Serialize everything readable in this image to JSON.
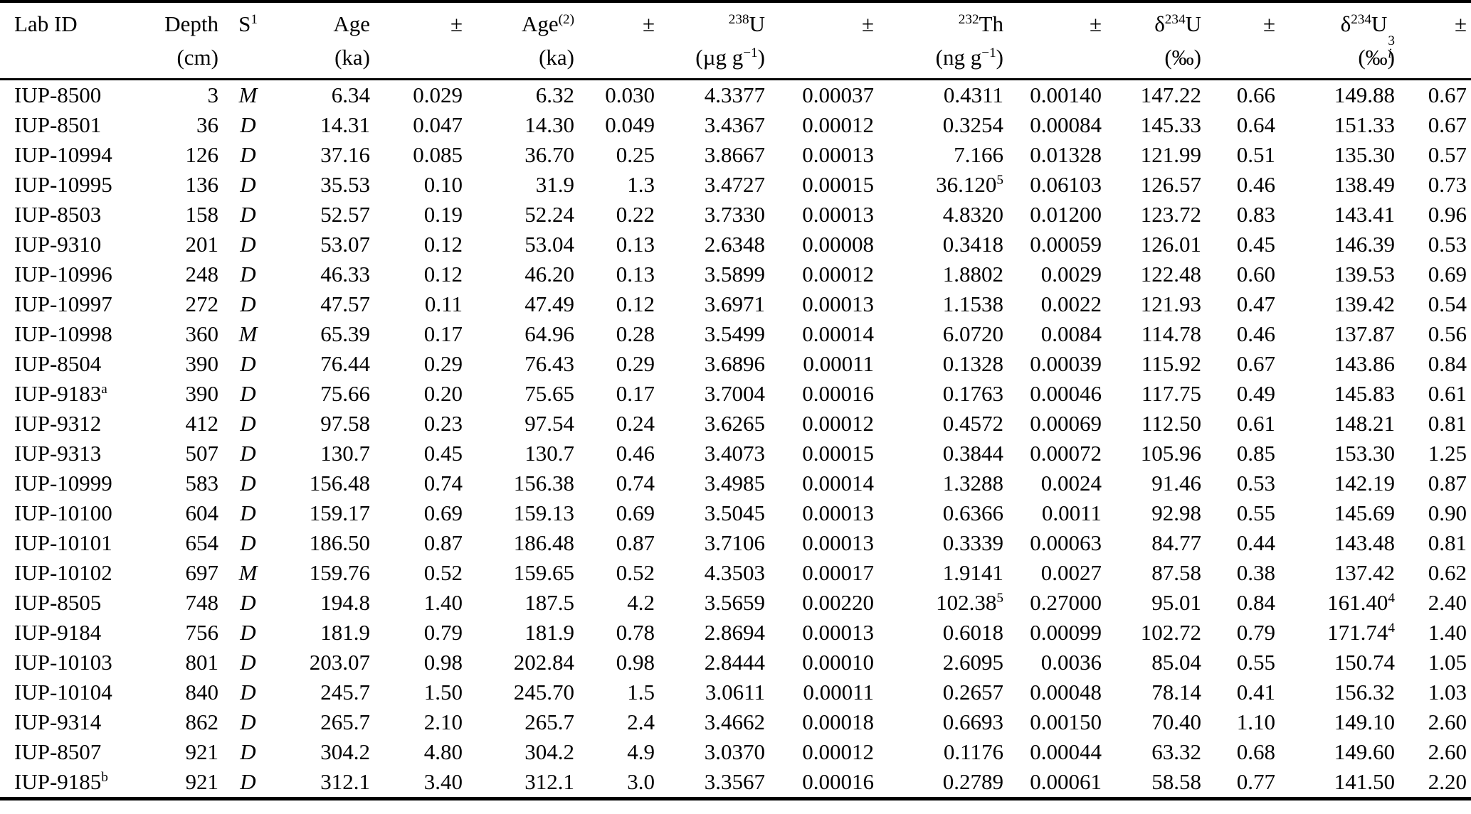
{
  "table": {
    "columns": [
      {
        "label": "Lab ID",
        "unit": "",
        "align": "left"
      },
      {
        "label": "Depth",
        "unit": "(cm)",
        "align": "right"
      },
      {
        "label": "S^{1}",
        "unit": "",
        "align": "center"
      },
      {
        "label": "Age",
        "unit": "(ka)",
        "align": "right"
      },
      {
        "label": "±",
        "unit": "",
        "align": "right"
      },
      {
        "label": "Age^{(2)}",
        "unit": "(ka)",
        "align": "right"
      },
      {
        "label": "±",
        "unit": "",
        "align": "right"
      },
      {
        "label": "^{238}U",
        "unit": "(µg g^{−1})",
        "align": "right"
      },
      {
        "label": "±",
        "unit": "",
        "align": "right"
      },
      {
        "label": "^{232}Th",
        "unit": "(ng g^{−1})",
        "align": "right"
      },
      {
        "label": "±",
        "unit": "",
        "align": "right"
      },
      {
        "label": "δ^{234}U",
        "unit": "(‰)",
        "align": "right"
      },
      {
        "label": "±",
        "unit": "",
        "align": "right"
      },
      {
        "label": "δ^{234}U^{3}_{i}",
        "unit": "(‰)",
        "align": "right"
      },
      {
        "label": "±",
        "unit": "",
        "align": "right"
      }
    ],
    "rows": [
      [
        "IUP-8500",
        "3",
        "M",
        "6.34",
        "0.029",
        "6.32",
        "0.030",
        "4.3377",
        "0.00037",
        "0.4311",
        "0.00140",
        "147.22",
        "0.66",
        "149.88",
        "0.67"
      ],
      [
        "IUP-8501",
        "36",
        "D",
        "14.31",
        "0.047",
        "14.30",
        "0.049",
        "3.4367",
        "0.00012",
        "0.3254",
        "0.00084",
        "145.33",
        "0.64",
        "151.33",
        "0.67"
      ],
      [
        "IUP-10994",
        "126",
        "D",
        "37.16",
        "0.085",
        "36.70",
        "0.25",
        "3.8667",
        "0.00013",
        "7.166",
        "0.01328",
        "121.99",
        "0.51",
        "135.30",
        "0.57"
      ],
      [
        "IUP-10995",
        "136",
        "D",
        "35.53",
        "0.10",
        "31.9",
        "1.3",
        "3.4727",
        "0.00015",
        "36.120^{5}",
        "0.06103",
        "126.57",
        "0.46",
        "138.49",
        "0.73"
      ],
      [
        "IUP-8503",
        "158",
        "D",
        "52.57",
        "0.19",
        "52.24",
        "0.22",
        "3.7330",
        "0.00013",
        "4.8320",
        "0.01200",
        "123.72",
        "0.83",
        "143.41",
        "0.96"
      ],
      [
        "IUP-9310",
        "201",
        "D",
        "53.07",
        "0.12",
        "53.04",
        "0.13",
        "2.6348",
        "0.00008",
        "0.3418",
        "0.00059",
        "126.01",
        "0.45",
        "146.39",
        "0.53"
      ],
      [
        "IUP-10996",
        "248",
        "D",
        "46.33",
        "0.12",
        "46.20",
        "0.13",
        "3.5899",
        "0.00012",
        "1.8802",
        "0.0029",
        "122.48",
        "0.60",
        "139.53",
        "0.69"
      ],
      [
        "IUP-10997",
        "272",
        "D",
        "47.57",
        "0.11",
        "47.49",
        "0.12",
        "3.6971",
        "0.00013",
        "1.1538",
        "0.0022",
        "121.93",
        "0.47",
        "139.42",
        "0.54"
      ],
      [
        "IUP-10998",
        "360",
        "M",
        "65.39",
        "0.17",
        "64.96",
        "0.28",
        "3.5499",
        "0.00014",
        "6.0720",
        "0.0084",
        "114.78",
        "0.46",
        "137.87",
        "0.56"
      ],
      [
        "IUP-8504",
        "390",
        "D",
        "76.44",
        "0.29",
        "76.43",
        "0.29",
        "3.6896",
        "0.00011",
        "0.1328",
        "0.00039",
        "115.92",
        "0.67",
        "143.86",
        "0.84"
      ],
      [
        "IUP-9183^{a}",
        "390",
        "D",
        "75.66",
        "0.20",
        "75.65",
        "0.17",
        "3.7004",
        "0.00016",
        "0.1763",
        "0.00046",
        "117.75",
        "0.49",
        "145.83",
        "0.61"
      ],
      [
        "IUP-9312",
        "412",
        "D",
        "97.58",
        "0.23",
        "97.54",
        "0.24",
        "3.6265",
        "0.00012",
        "0.4572",
        "0.00069",
        "112.50",
        "0.61",
        "148.21",
        "0.81"
      ],
      [
        "IUP-9313",
        "507",
        "D",
        "130.7",
        "0.45",
        "130.7",
        "0.46",
        "3.4073",
        "0.00015",
        "0.3844",
        "0.00072",
        "105.96",
        "0.85",
        "153.30",
        "1.25"
      ],
      [
        "IUP-10999",
        "583",
        "D",
        "156.48",
        "0.74",
        "156.38",
        "0.74",
        "3.4985",
        "0.00014",
        "1.3288",
        "0.0024",
        "91.46",
        "0.53",
        "142.19",
        "0.87"
      ],
      [
        "IUP-10100",
        "604",
        "D",
        "159.17",
        "0.69",
        "159.13",
        "0.69",
        "3.5045",
        "0.00013",
        "0.6366",
        "0.0011",
        "92.98",
        "0.55",
        "145.69",
        "0.90"
      ],
      [
        "IUP-10101",
        "654",
        "D",
        "186.50",
        "0.87",
        "186.48",
        "0.87",
        "3.7106",
        "0.00013",
        "0.3339",
        "0.00063",
        "84.77",
        "0.44",
        "143.48",
        "0.81"
      ],
      [
        "IUP-10102",
        "697",
        "M",
        "159.76",
        "0.52",
        "159.65",
        "0.52",
        "4.3503",
        "0.00017",
        "1.9141",
        "0.0027",
        "87.58",
        "0.38",
        "137.42",
        "0.62"
      ],
      [
        "IUP-8505",
        "748",
        "D",
        "194.8",
        "1.40",
        "187.5",
        "4.2",
        "3.5659",
        "0.00220",
        "102.38^{5}",
        "0.27000",
        "95.01",
        "0.84",
        "161.40^{4}",
        "2.40"
      ],
      [
        "IUP-9184",
        "756",
        "D",
        "181.9",
        "0.79",
        "181.9",
        "0.78",
        "2.8694",
        "0.00013",
        "0.6018",
        "0.00099",
        "102.72",
        "0.79",
        "171.74^{4}",
        "1.40"
      ],
      [
        "IUP-10103",
        "801",
        "D",
        "203.07",
        "0.98",
        "202.84",
        "0.98",
        "2.8444",
        "0.00010",
        "2.6095",
        "0.0036",
        "85.04",
        "0.55",
        "150.74",
        "1.05"
      ],
      [
        "IUP-10104",
        "840",
        "D",
        "245.7",
        "1.50",
        "245.70",
        "1.5",
        "3.0611",
        "0.00011",
        "0.2657",
        "0.00048",
        "78.14",
        "0.41",
        "156.32",
        "1.03"
      ],
      [
        "IUP-9314",
        "862",
        "D",
        "265.7",
        "2.10",
        "265.7",
        "2.4",
        "3.4662",
        "0.00018",
        "0.6693",
        "0.00150",
        "70.40",
        "1.10",
        "149.10",
        "2.60"
      ],
      [
        "IUP-8507",
        "921",
        "D",
        "304.2",
        "4.80",
        "304.2",
        "4.9",
        "3.0370",
        "0.00012",
        "0.1176",
        "0.00044",
        "63.32",
        "0.68",
        "149.60",
        "2.60"
      ],
      [
        "IUP-9185^{b}",
        "921",
        "D",
        "312.1",
        "3.40",
        "312.1",
        "3.0",
        "3.3567",
        "0.00016",
        "0.2789",
        "0.00061",
        "58.58",
        "0.77",
        "141.50",
        "2.20"
      ]
    ]
  },
  "colors": {
    "text": "#000000",
    "background": "#ffffff",
    "rule": "#000000"
  }
}
